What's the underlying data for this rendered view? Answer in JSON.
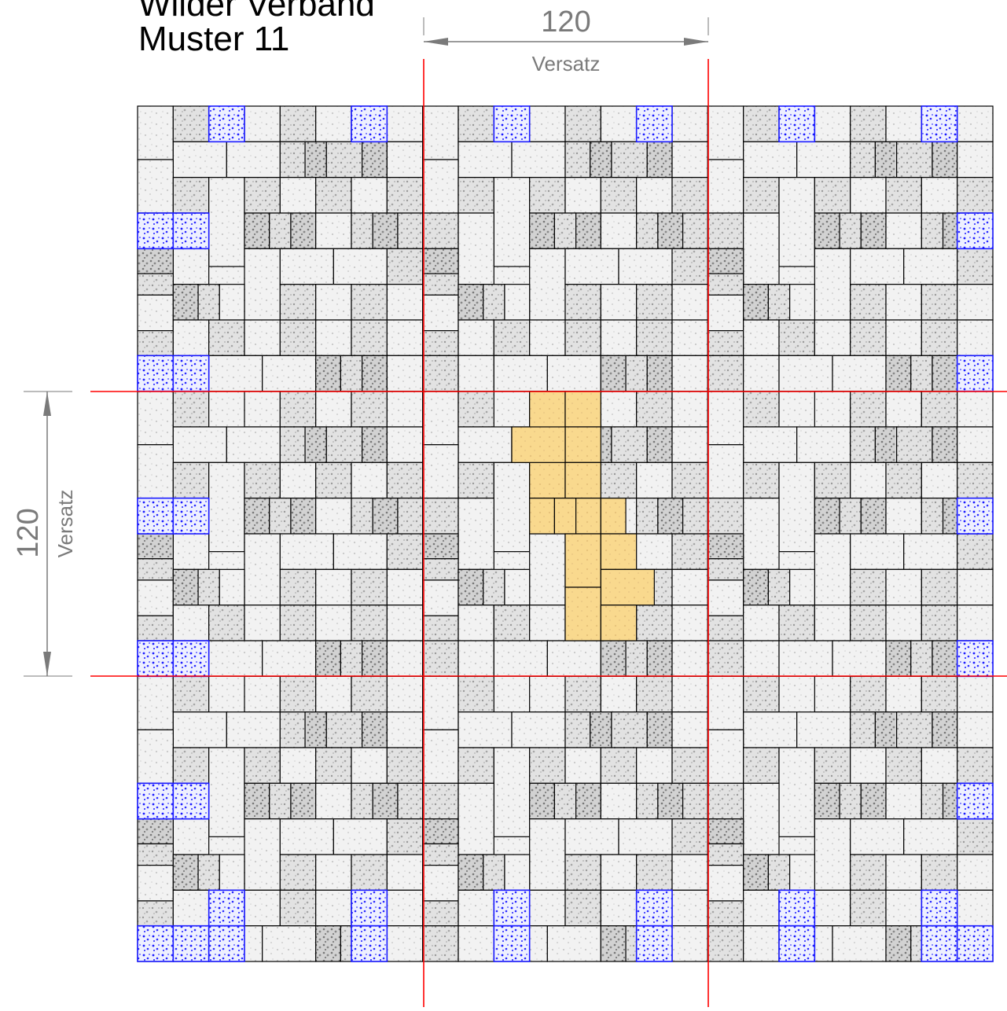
{
  "title": {
    "line1": "Wilder Verband",
    "line2": "Muster 11"
  },
  "dimensions": {
    "horizontal": {
      "value": "120",
      "label": "Versatz"
    },
    "vertical": {
      "value": "120",
      "label": "Versatz"
    }
  },
  "pattern": {
    "repeat_cells": 3,
    "base_units_per_cell": 8,
    "offset_units": 120
  },
  "colors": {
    "tile_outline": "#000000",
    "tile_light": "#f0f0f0",
    "tile_medium": "#d9d9d9",
    "tile_dark": "#b5b5b5",
    "speckle": "#8a8a8a",
    "highlight_blue": "#1a1aff",
    "highlight_orange": "#f9d98e",
    "guide_red": "#ff0000",
    "dimension_gray": "#7a7a7a"
  }
}
